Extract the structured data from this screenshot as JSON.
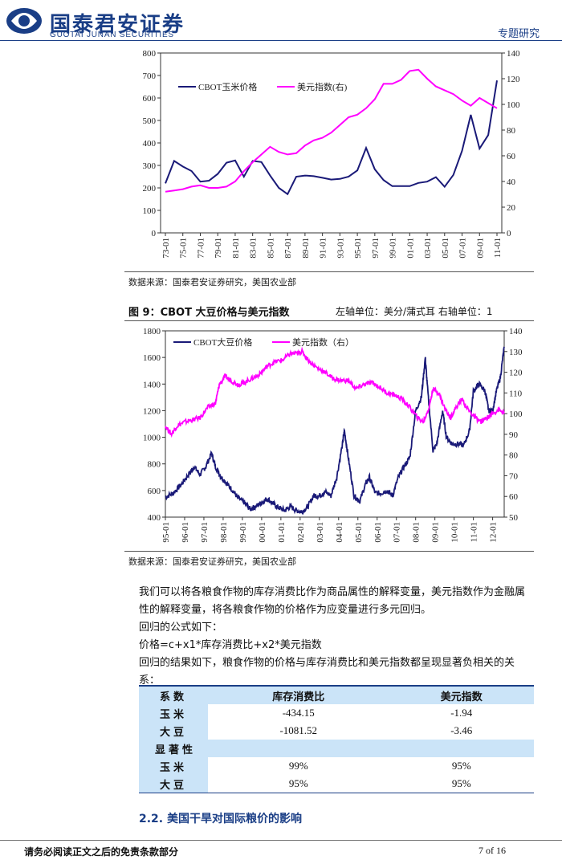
{
  "header": {
    "logo_main": "国泰君安证券",
    "logo_sub": "GUOTAI JUNAN SECURITIES",
    "section": "专题研究"
  },
  "chart1": {
    "source": "数据来源：国泰君安证券研究，美国农业部",
    "chart_data": {
      "type": "line",
      "x": [
        "73",
        "74",
        "75",
        "76",
        "77",
        "78",
        "79",
        "80",
        "81",
        "82",
        "83",
        "84",
        "85",
        "86",
        "87",
        "88",
        "89",
        "90",
        "91",
        "92",
        "93",
        "94",
        "95",
        "96",
        "97",
        "98",
        "99",
        "00",
        "01",
        "02",
        "03",
        "04",
        "05",
        "06",
        "07",
        "08",
        "09",
        "10",
        "11"
      ],
      "x_tick_labels": [
        "73-01",
        "75-01",
        "77-01",
        "79-01",
        "81-01",
        "83-01",
        "85-01",
        "87-01",
        "89-01",
        "91-01",
        "93-01",
        "95-01",
        "97-01",
        "99-01",
        "01-01",
        "03-01",
        "05-01",
        "07-01",
        "09-01",
        "11-01"
      ],
      "series": [
        {
          "name": "CBOT玉米价格",
          "axis": "left",
          "color": "#1a1a78",
          "values": [
            220,
            320,
            295,
            275,
            228,
            232,
            262,
            312,
            322,
            250,
            320,
            315,
            255,
            200,
            172,
            250,
            255,
            252,
            245,
            237,
            240,
            250,
            278,
            378,
            283,
            235,
            208,
            208,
            208,
            222,
            228,
            248,
            205,
            258,
            365,
            525,
            375,
            435,
            678
          ]
        },
        {
          "name": "美元指数(右)",
          "axis": "right",
          "color": "#ff00ff",
          "values": [
            32,
            33,
            34,
            36,
            37,
            35,
            35,
            36,
            40,
            48,
            55,
            61,
            67,
            63,
            61,
            62,
            68,
            72,
            74,
            78,
            84,
            90,
            92,
            97,
            104,
            116,
            116,
            119,
            126,
            127,
            120,
            114,
            111,
            108,
            103,
            99,
            105,
            101,
            97
          ]
        }
      ],
      "left_ylim": [
        0,
        800
      ],
      "left_yticks": [
        0,
        100,
        200,
        300,
        400,
        500,
        600,
        700,
        800
      ],
      "right_ylim": [
        0,
        140
      ],
      "right_yticks": [
        0,
        20,
        40,
        60,
        80,
        100,
        120,
        140
      ],
      "legend_placement": "top-left"
    }
  },
  "chart2": {
    "title": "图 9：CBOT 大豆价格与美元指数",
    "units": "左轴单位：美分/蒲式耳    右轴单位：1",
    "source": "数据来源：国泰君安证券研究，美国农业部",
    "chart_data": {
      "type": "line",
      "x_tick_labels": [
        "95-01",
        "96-01",
        "97-01",
        "98-01",
        "99-01",
        "00-01",
        "01-01",
        "02-01",
        "03-01",
        "04-01",
        "05-01",
        "06-01",
        "07-01",
        "08-01",
        "09-01",
        "10-01",
        "11-01",
        "12-01"
      ],
      "x_start": 1995.0,
      "x_end": 2012.6,
      "series": [
        {
          "name": "CBOT大豆价格",
          "axis": "left",
          "color": "#1a1a78",
          "points": [
            [
              1995.0,
              550
            ],
            [
              1995.4,
              580
            ],
            [
              1995.8,
              640
            ],
            [
              1996.2,
              720
            ],
            [
              1996.5,
              780
            ],
            [
              1996.8,
              720
            ],
            [
              1997.1,
              780
            ],
            [
              1997.4,
              880
            ],
            [
              1997.6,
              780
            ],
            [
              1997.9,
              700
            ],
            [
              1998.2,
              650
            ],
            [
              1998.5,
              600
            ],
            [
              1998.8,
              540
            ],
            [
              1999.1,
              510
            ],
            [
              1999.4,
              460
            ],
            [
              1999.7,
              480
            ],
            [
              2000.0,
              510
            ],
            [
              2000.3,
              540
            ],
            [
              2000.6,
              500
            ],
            [
              2000.9,
              470
            ],
            [
              2001.2,
              450
            ],
            [
              2001.5,
              480
            ],
            [
              2001.8,
              450
            ],
            [
              2002.1,
              440
            ],
            [
              2002.4,
              480
            ],
            [
              2002.7,
              560
            ],
            [
              2003.0,
              560
            ],
            [
              2003.3,
              590
            ],
            [
              2003.6,
              560
            ],
            [
              2003.9,
              700
            ],
            [
              2004.2,
              950
            ],
            [
              2004.3,
              1050
            ],
            [
              2004.5,
              850
            ],
            [
              2004.8,
              560
            ],
            [
              2005.1,
              520
            ],
            [
              2005.4,
              650
            ],
            [
              2005.6,
              700
            ],
            [
              2005.9,
              580
            ],
            [
              2006.2,
              580
            ],
            [
              2006.5,
              600
            ],
            [
              2006.8,
              560
            ],
            [
              2007.1,
              700
            ],
            [
              2007.4,
              780
            ],
            [
              2007.7,
              850
            ],
            [
              2008.0,
              1200
            ],
            [
              2008.3,
              1300
            ],
            [
              2008.5,
              1600
            ],
            [
              2008.6,
              1400
            ],
            [
              2008.9,
              900
            ],
            [
              2009.1,
              950
            ],
            [
              2009.4,
              1200
            ],
            [
              2009.6,
              1000
            ],
            [
              2009.9,
              950
            ],
            [
              2010.2,
              950
            ],
            [
              2010.5,
              940
            ],
            [
              2010.8,
              1050
            ],
            [
              2011.0,
              1350
            ],
            [
              2011.3,
              1400
            ],
            [
              2011.6,
              1350
            ],
            [
              2011.8,
              1200
            ],
            [
              2012.0,
              1200
            ],
            [
              2012.2,
              1350
            ],
            [
              2012.4,
              1450
            ],
            [
              2012.6,
              1680
            ]
          ]
        },
        {
          "name": "美元指数（右）",
          "axis": "right",
          "color": "#ff00ff",
          "points": [
            [
              1995.0,
              94
            ],
            [
              1995.3,
              90
            ],
            [
              1995.6,
              94
            ],
            [
              1996.0,
              96
            ],
            [
              1996.4,
              97
            ],
            [
              1996.8,
              98
            ],
            [
              1997.2,
              103
            ],
            [
              1997.6,
              105
            ],
            [
              1997.8,
              114
            ],
            [
              1998.1,
              118
            ],
            [
              1998.4,
              116
            ],
            [
              1998.8,
              114
            ],
            [
              1999.1,
              115
            ],
            [
              1999.5,
              117
            ],
            [
              1999.9,
              119
            ],
            [
              2000.3,
              123
            ],
            [
              2000.7,
              125
            ],
            [
              2001.1,
              126
            ],
            [
              2001.5,
              129
            ],
            [
              2001.9,
              129
            ],
            [
              2002.1,
              130
            ],
            [
              2002.5,
              125
            ],
            [
              2002.9,
              122
            ],
            [
              2003.3,
              120
            ],
            [
              2003.7,
              117
            ],
            [
              2004.1,
              116
            ],
            [
              2004.5,
              116
            ],
            [
              2004.9,
              112
            ],
            [
              2005.3,
              114
            ],
            [
              2005.7,
              115
            ],
            [
              2006.1,
              113
            ],
            [
              2006.5,
              110
            ],
            [
              2006.9,
              109
            ],
            [
              2007.3,
              107
            ],
            [
              2007.7,
              103
            ],
            [
              2008.1,
              98
            ],
            [
              2008.4,
              96
            ],
            [
              2008.7,
              103
            ],
            [
              2008.9,
              112
            ],
            [
              2009.2,
              110
            ],
            [
              2009.5,
              103
            ],
            [
              2009.8,
              98
            ],
            [
              2010.1,
              103
            ],
            [
              2010.4,
              107
            ],
            [
              2010.8,
              101
            ],
            [
              2011.1,
              98
            ],
            [
              2011.4,
              96
            ],
            [
              2011.7,
              98
            ],
            [
              2012.0,
              100
            ],
            [
              2012.3,
              102
            ],
            [
              2012.6,
              100
            ]
          ]
        }
      ],
      "left_ylim": [
        400,
        1800
      ],
      "left_yticks": [
        400,
        600,
        800,
        1000,
        1200,
        1400,
        1600,
        1800
      ],
      "right_ylim": [
        50,
        140
      ],
      "right_yticks": [
        50,
        60,
        70,
        80,
        90,
        100,
        110,
        120,
        130,
        140
      ],
      "legend_placement": "top-left"
    }
  },
  "body": {
    "para1": "我们可以将各粮食作物的库存消费比作为商品属性的解释变量，美元指数作为金融属性的解释变量，将各粮食作物的价格作为应变量进行多元回归。",
    "para2": "回归的公式如下：",
    "para3": "价格=c+x1*库存消费比+x2*美元指数",
    "para4": "回归的结果如下，粮食作物的价格与库存消费比和美元指数都呈现显著负相关的关系："
  },
  "table": {
    "head": [
      "系数",
      "库存消费比",
      "美元指数"
    ],
    "rows": [
      [
        "玉米",
        "-434.15",
        "-1.94"
      ],
      [
        "大豆",
        "-1081.52",
        "-3.46"
      ]
    ],
    "sig_label": "显著性",
    "sig_rows": [
      [
        "玉米",
        "99%",
        "95%"
      ],
      [
        "大豆",
        "95%",
        "95%"
      ]
    ]
  },
  "section_title": "2.2. 美国干旱对国际粮价的影响",
  "footer": {
    "left": "请务必阅读正文之后的免责条款部分",
    "right": "7 of 16"
  }
}
